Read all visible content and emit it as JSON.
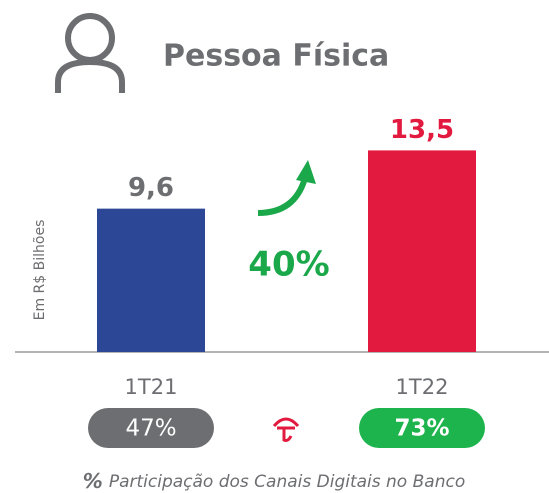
{
  "chart_data": {
    "type": "bar",
    "title": "Pessoa Física",
    "y_label": "Em R$ Bilhões",
    "categories": [
      "1T21",
      "1T22"
    ],
    "values": [
      9.6,
      13.5
    ],
    "value_labels": [
      "9,6",
      "13,5"
    ],
    "colors": [
      "#2b4796",
      "#e31a3f"
    ],
    "ylim": [
      0,
      15
    ],
    "growth_label": "40%",
    "digital_share": {
      "values": [
        47,
        73
      ],
      "value_labels": [
        "47%",
        "73%"
      ],
      "colors": [
        "#6d6e71",
        "#1db34d"
      ]
    },
    "footnote_symbol": "%",
    "footnote": "Participação dos Canais Digitais no Banco"
  }
}
